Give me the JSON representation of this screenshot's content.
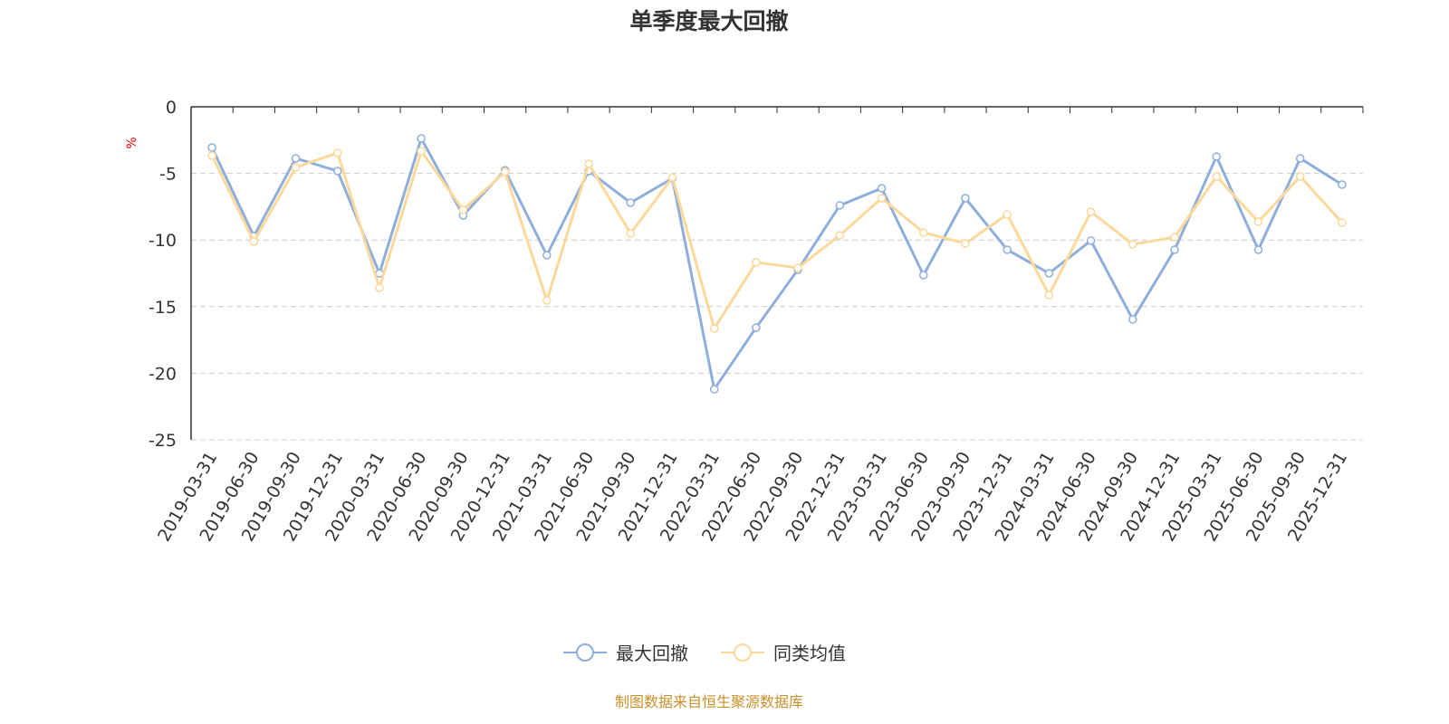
{
  "chart_data": {
    "type": "line",
    "title": "单季度最大回撤",
    "ylabel": "%",
    "xlabel": "",
    "ylim": [
      -25,
      0
    ],
    "yticks": [
      0,
      -5,
      -10,
      -15,
      -20,
      -25
    ],
    "grid": "horizontal-dashed",
    "legend_position": "bottom-center",
    "categories": [
      "2019-03-31",
      "2019-06-30",
      "2019-09-30",
      "2019-12-31",
      "2020-03-31",
      "2020-06-30",
      "2020-09-30",
      "2020-12-31",
      "2021-03-31",
      "2021-06-30",
      "2021-09-30",
      "2021-12-31",
      "2022-03-31",
      "2022-06-30",
      "2022-09-30",
      "2022-12-31",
      "2023-03-31",
      "2023-06-30",
      "2023-09-30",
      "2023-12-31",
      "2024-03-31",
      "2024-06-30",
      "2024-09-30",
      "2024-12-31",
      "2025-03-31",
      "2025-06-30",
      "2025-09-30",
      "2025-12-31"
    ],
    "series": [
      {
        "name": "最大回撤",
        "color": "#8eaedb",
        "values": [
          -3.06,
          -9.71,
          -3.87,
          -4.82,
          -12.5,
          -2.38,
          -8.15,
          -4.76,
          -11.14,
          -4.82,
          -7.2,
          -5.37,
          -21.2,
          -16.58,
          -12.23,
          -7.4,
          -6.11,
          -12.64,
          -6.86,
          -10.73,
          -12.5,
          -10.05,
          -15.96,
          -10.73,
          -3.74,
          -10.73,
          -3.87,
          -5.84
        ]
      },
      {
        "name": "同类均值",
        "color": "#fcd99a",
        "values": [
          -3.67,
          -10.12,
          -4.55,
          -3.46,
          -13.59,
          -3.33,
          -7.74,
          -4.89,
          -14.54,
          -4.28,
          -9.51,
          -5.3,
          -16.64,
          -11.68,
          -12.09,
          -9.65,
          -6.86,
          -9.44,
          -10.26,
          -8.08,
          -14.13,
          -7.88,
          -10.33,
          -9.78,
          -5.23,
          -8.63,
          -5.23,
          -8.7
        ]
      }
    ]
  },
  "footer": "制图数据来自恒生聚源数据库"
}
